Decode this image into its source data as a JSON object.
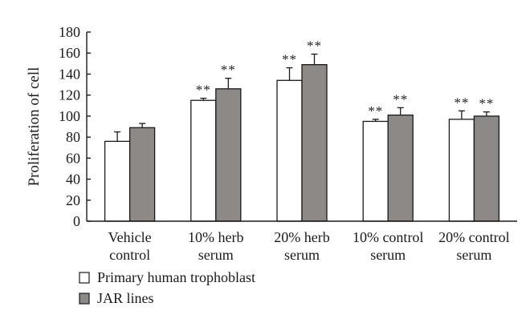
{
  "chart_data": {
    "type": "bar",
    "ylabel": "Proliferation of cell",
    "ylim": [
      0,
      180
    ],
    "yticks": [
      0,
      20,
      40,
      60,
      80,
      100,
      120,
      140,
      160,
      180
    ],
    "categories": [
      [
        "Vehicle",
        "control"
      ],
      [
        "10% herb",
        "serum"
      ],
      [
        "20% herb",
        "serum"
      ],
      [
        "10% control",
        "serum"
      ],
      [
        "20% control",
        "serum"
      ]
    ],
    "series": [
      {
        "name": "Primary human trophoblast",
        "color": "#ffffff",
        "values": [
          76,
          115,
          134,
          95,
          97
        ],
        "errors": [
          9,
          2,
          12,
          2,
          8
        ],
        "significance": [
          "",
          "**",
          "**",
          "**",
          "**"
        ]
      },
      {
        "name": "JAR lines",
        "color": "#8c8986",
        "values": [
          89,
          126,
          149,
          101,
          100
        ],
        "errors": [
          4,
          10,
          10,
          7,
          4
        ],
        "significance": [
          "",
          "**",
          "**",
          "**",
          "**"
        ]
      }
    ],
    "grid": false,
    "legend_position": "bottom-left"
  }
}
